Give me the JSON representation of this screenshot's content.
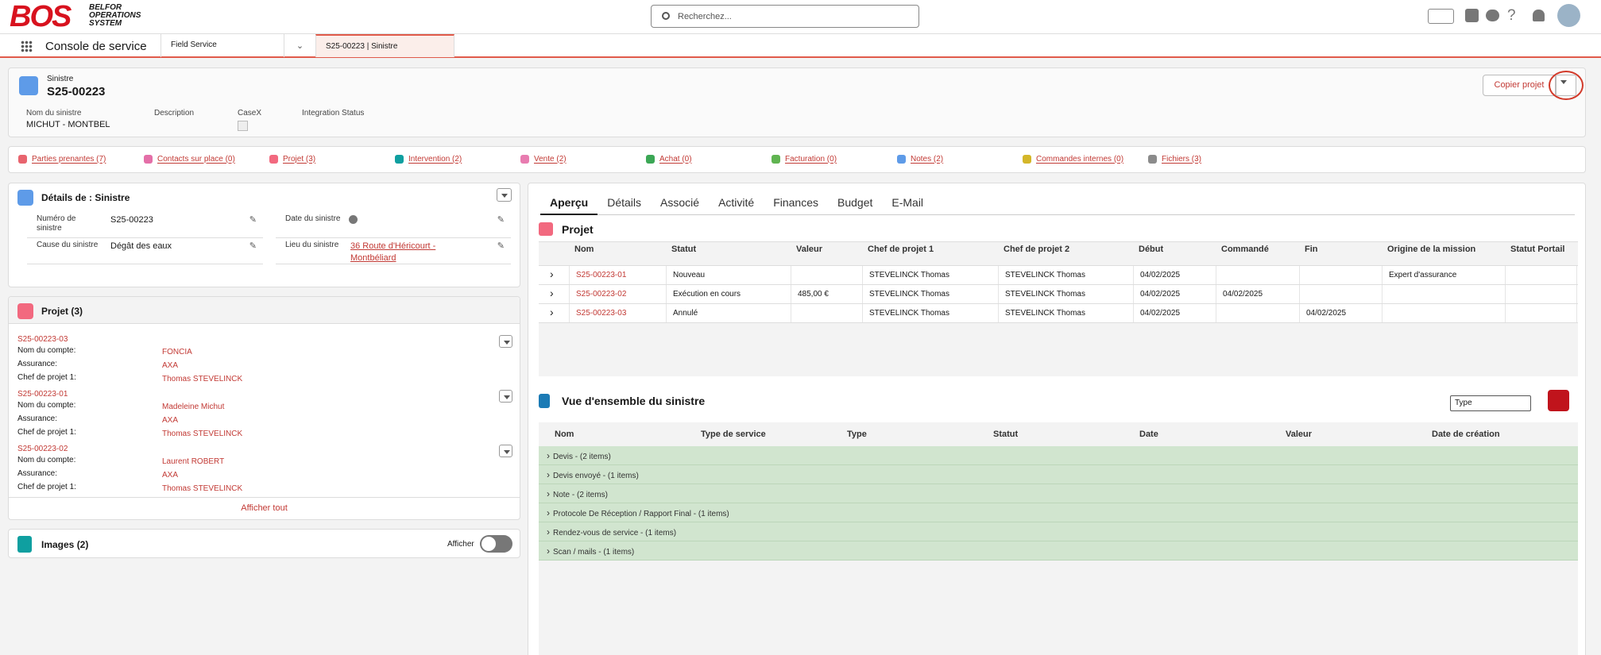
{
  "header": {
    "logo": "BOS",
    "logo_text": [
      "BELFOR",
      "OPERATIONS",
      "SYSTEM"
    ],
    "search_placeholder": "Recherchez..."
  },
  "nav": {
    "app_name": "Console de service",
    "tabs": [
      "Field Service",
      "S25-00223 | Sinistre"
    ]
  },
  "record": {
    "object": "Sinistre",
    "title": "S25-00223",
    "action": "Copier projet",
    "fields": [
      {
        "label": "Nom du sinistre",
        "value": "MICHUT - MONTBEL"
      },
      {
        "label": "Description"
      },
      {
        "label": "CaseX"
      },
      {
        "label": "Integration Status"
      }
    ]
  },
  "related_lists": [
    "Parties prenantes (7)",
    "Contacts sur place (0)",
    "Projet (3)",
    "Intervention (2)",
    "Vente (2)",
    "Achat (0)",
    "Facturation (0)",
    "Notes (2)",
    "Commandes internes (0)",
    "Fichiers (3)"
  ],
  "details": {
    "title": "Détails de : Sinistre",
    "fields": [
      {
        "label": "Numéro de sinistre",
        "value": "S25-00223"
      },
      {
        "label": "Date du sinistre"
      },
      {
        "label": "Cause du sinistre",
        "value": "Dégât des eaux"
      },
      {
        "label": "Lieu du sinistre",
        "value": "36 Route d'Héricourt - Montbéliard"
      }
    ]
  },
  "projects": {
    "title": "Projet (3)",
    "items": [
      {
        "name": "S25-00223-03",
        "fields": [
          {
            "label": "Nom du compte:",
            "value": "FONCIA"
          },
          {
            "label": "Assurance:",
            "value": "AXA"
          },
          {
            "label": "Chef de projet 1:",
            "value": "Thomas STEVELINCK"
          }
        ]
      },
      {
        "name": "S25-00223-01",
        "fields": [
          {
            "label": "Nom du compte:",
            "value": "Madeleine Michut"
          },
          {
            "label": "Assurance:",
            "value": "AXA"
          },
          {
            "label": "Chef de projet 1:",
            "value": "Thomas STEVELINCK"
          }
        ]
      },
      {
        "name": "S25-00223-02",
        "fields": [
          {
            "label": "Nom du compte:",
            "value": "Laurent ROBERT"
          },
          {
            "label": "Assurance:",
            "value": "AXA"
          },
          {
            "label": "Chef de projet 1:",
            "value": "Thomas STEVELINCK"
          }
        ]
      }
    ],
    "view_all": "Afficher tout"
  },
  "images": {
    "title": "Images (2)",
    "toggle_label": "Afficher"
  },
  "tabs": [
    "Aperçu",
    "Détails",
    "Associé",
    "Activité",
    "Finances",
    "Budget",
    "E-Mail"
  ],
  "project_table": {
    "title": "Projet",
    "columns": [
      "Nom",
      "Statut",
      "Valeur",
      "Chef de projet 1",
      "Chef de projet 2",
      "Début",
      "Commandé",
      "Fin",
      "Origine de la mission",
      "Statut Portail"
    ],
    "rows": [
      [
        "S25-00223-01",
        "Nouveau",
        null,
        "STEVELINCK Thomas",
        "STEVELINCK Thomas",
        "04/02/2025",
        null,
        null,
        "Expert d'assurance",
        null
      ],
      [
        "S25-00223-02",
        "Exécution en cours",
        "485,00 €",
        "STEVELINCK Thomas",
        "STEVELINCK Thomas",
        "04/02/2025",
        "04/02/2025",
        null,
        null,
        null
      ],
      [
        "S25-00223-03",
        "Annulé",
        null,
        "STEVELINCK Thomas",
        "STEVELINCK Thomas",
        "04/02/2025",
        null,
        "04/02/2025",
        null,
        null
      ]
    ]
  },
  "overview": {
    "title": "Vue d'ensemble du sinistre",
    "filter": "Type",
    "columns": [
      "Nom",
      "Type de service",
      "Type",
      "Statut",
      "Date",
      "Valeur",
      "Date de création"
    ],
    "groups": [
      "Devis - (2 items)",
      "Devis envoyé - (1 items)",
      "Note - (2 items)",
      "Protocole De Réception / Rapport Final - (1 items)",
      "Rendez-vous de service - (1 items)",
      "Scan / mails - (1 items)"
    ]
  }
}
